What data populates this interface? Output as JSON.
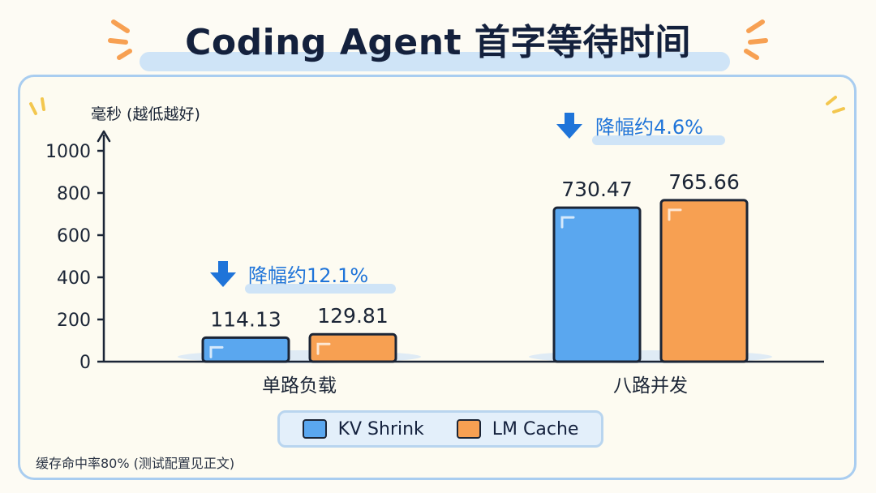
{
  "title": "Coding Agent 首字等待时间",
  "footnote": "缓存命中率80% (测试配置见正文)",
  "colors": {
    "kv_shrink": "#5aa7ef",
    "lm_cache": "#f7a052",
    "annotation": "#1f74d9",
    "ink": "#1b2536"
  },
  "chart_data": {
    "type": "bar",
    "title": "Coding Agent 首字等待时间",
    "ylabel": "毫秒 (越低越好)",
    "xlabel": "",
    "ylim": [
      0,
      1000
    ],
    "yticks": [
      0,
      200,
      400,
      600,
      800,
      1000
    ],
    "grid": false,
    "legend": "bottom-center",
    "categories": [
      "单路负载",
      "八路并发"
    ],
    "series": [
      {
        "name": "KV Shrink",
        "values": [
          114.13,
          730.47
        ],
        "labels": [
          "114.13",
          "730.47"
        ],
        "color": "#5aa7ef"
      },
      {
        "name": "LM Cache",
        "values": [
          129.81,
          765.66
        ],
        "labels": [
          "129.81",
          "765.66"
        ],
        "color": "#f7a052"
      }
    ],
    "annotations": [
      "降幅约12.1%",
      "降幅约4.6%"
    ]
  }
}
